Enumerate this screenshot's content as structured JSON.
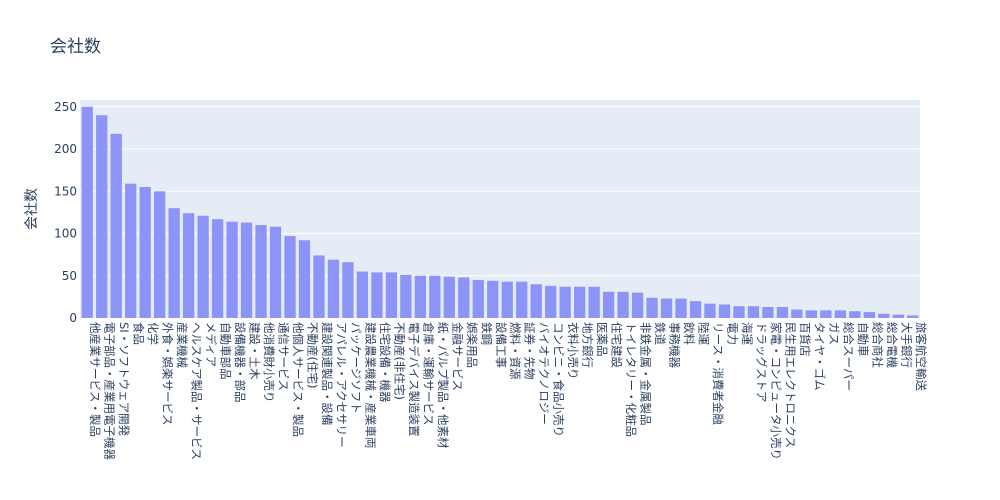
{
  "chart_data": {
    "type": "bar",
    "title": "会社数",
    "xlabel": "",
    "ylabel": "会社数",
    "ylim": [
      0,
      258
    ],
    "yticks": [
      0,
      50,
      100,
      150,
      200,
      250
    ],
    "grid": true,
    "colors": {
      "bar": "#8c94f8",
      "plot_bg": "#e5ecf6",
      "grid": "#ffffff",
      "text": "#2a3f5f"
    },
    "categories": [
      "他産業サービス・製品",
      "電子部品・産業用電子機器",
      "SI・ソフトウェア開発",
      "食品",
      "化学",
      "外食・娯楽サービス",
      "産業機械",
      "ヘルスケア製品・サービス",
      "メディア",
      "自動車部品",
      "設備機器・部品",
      "建設・土木",
      "他消費財小売り",
      "通信サービス",
      "他個人サービス・製品",
      "不動産(住宅)",
      "建設関連製品・設備",
      "アパレル・アクセサリー",
      "パッケージソフト",
      "建設農業機械・産業車両",
      "住宅設備・機器",
      "不動産(非住宅)",
      "電子デバイス製造装置",
      "倉庫・運輸サービス",
      "紙・パルプ製品・他素材",
      "金融サービス",
      "娯楽用品",
      "鉄鋼",
      "設備工事",
      "燃料・資源",
      "証券・先物",
      "バイオテクノロジー",
      "コンビニ・食品小売り",
      "衣料小売り",
      "地方銀行",
      "医薬品",
      "住宅建設",
      "トイレタリー・化粧品",
      "非鉄金属・金属製品",
      "鉄道",
      "事務機器",
      "飲料",
      "陸運",
      "リース・消費者金融",
      "電力",
      "海運",
      "ドラッグストア",
      "家電・コンピュータ小売り",
      "民生用エレクトロニクス",
      "百貨店",
      "タイヤ・ゴム",
      "ガス",
      "総合スーパー",
      "自動車",
      "総合商社",
      "総合電機",
      "大手銀行",
      "旅客航空輸送"
    ],
    "values": [
      250,
      240,
      218,
      159,
      155,
      150,
      130,
      124,
      121,
      117,
      114,
      113,
      110,
      108,
      97,
      92,
      74,
      69,
      66,
      55,
      54,
      54,
      51,
      50,
      50,
      49,
      48,
      45,
      44,
      43,
      43,
      40,
      38,
      37,
      37,
      37,
      31,
      31,
      30,
      24,
      23,
      23,
      20,
      17,
      16,
      14,
      14,
      13,
      13,
      10,
      9,
      9,
      9,
      8,
      7,
      5,
      4,
      3
    ]
  }
}
